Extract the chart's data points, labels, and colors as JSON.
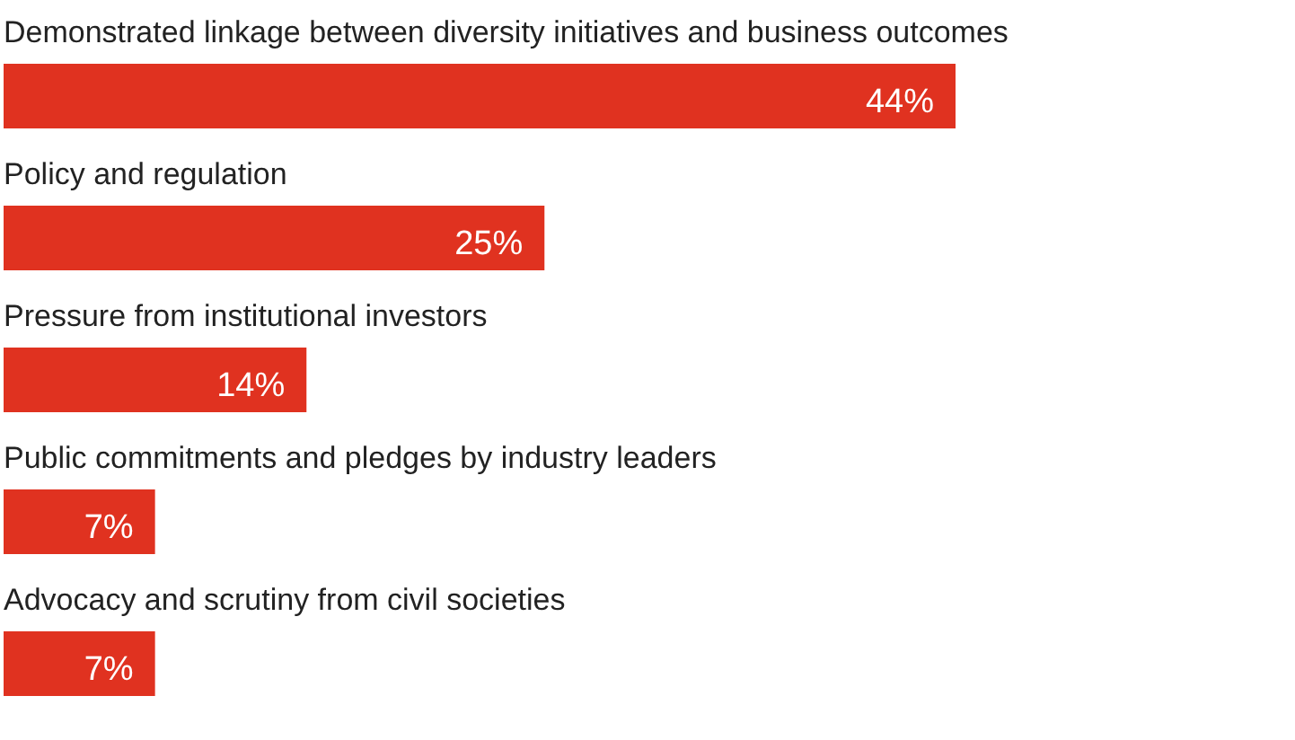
{
  "chart_data": {
    "type": "bar",
    "orientation": "horizontal",
    "categories": [
      "Demonstrated linkage between diversity initiatives and business outcomes",
      "Policy and regulation",
      "Pressure from institutional investors",
      "Public commitments and pledges by industry leaders",
      "Advocacy and scrutiny from civil societies"
    ],
    "values": [
      44,
      25,
      14,
      7,
      7
    ],
    "value_labels": [
      "44%",
      "25%",
      "14%",
      "7%",
      "7%"
    ],
    "color": "#e03220"
  }
}
